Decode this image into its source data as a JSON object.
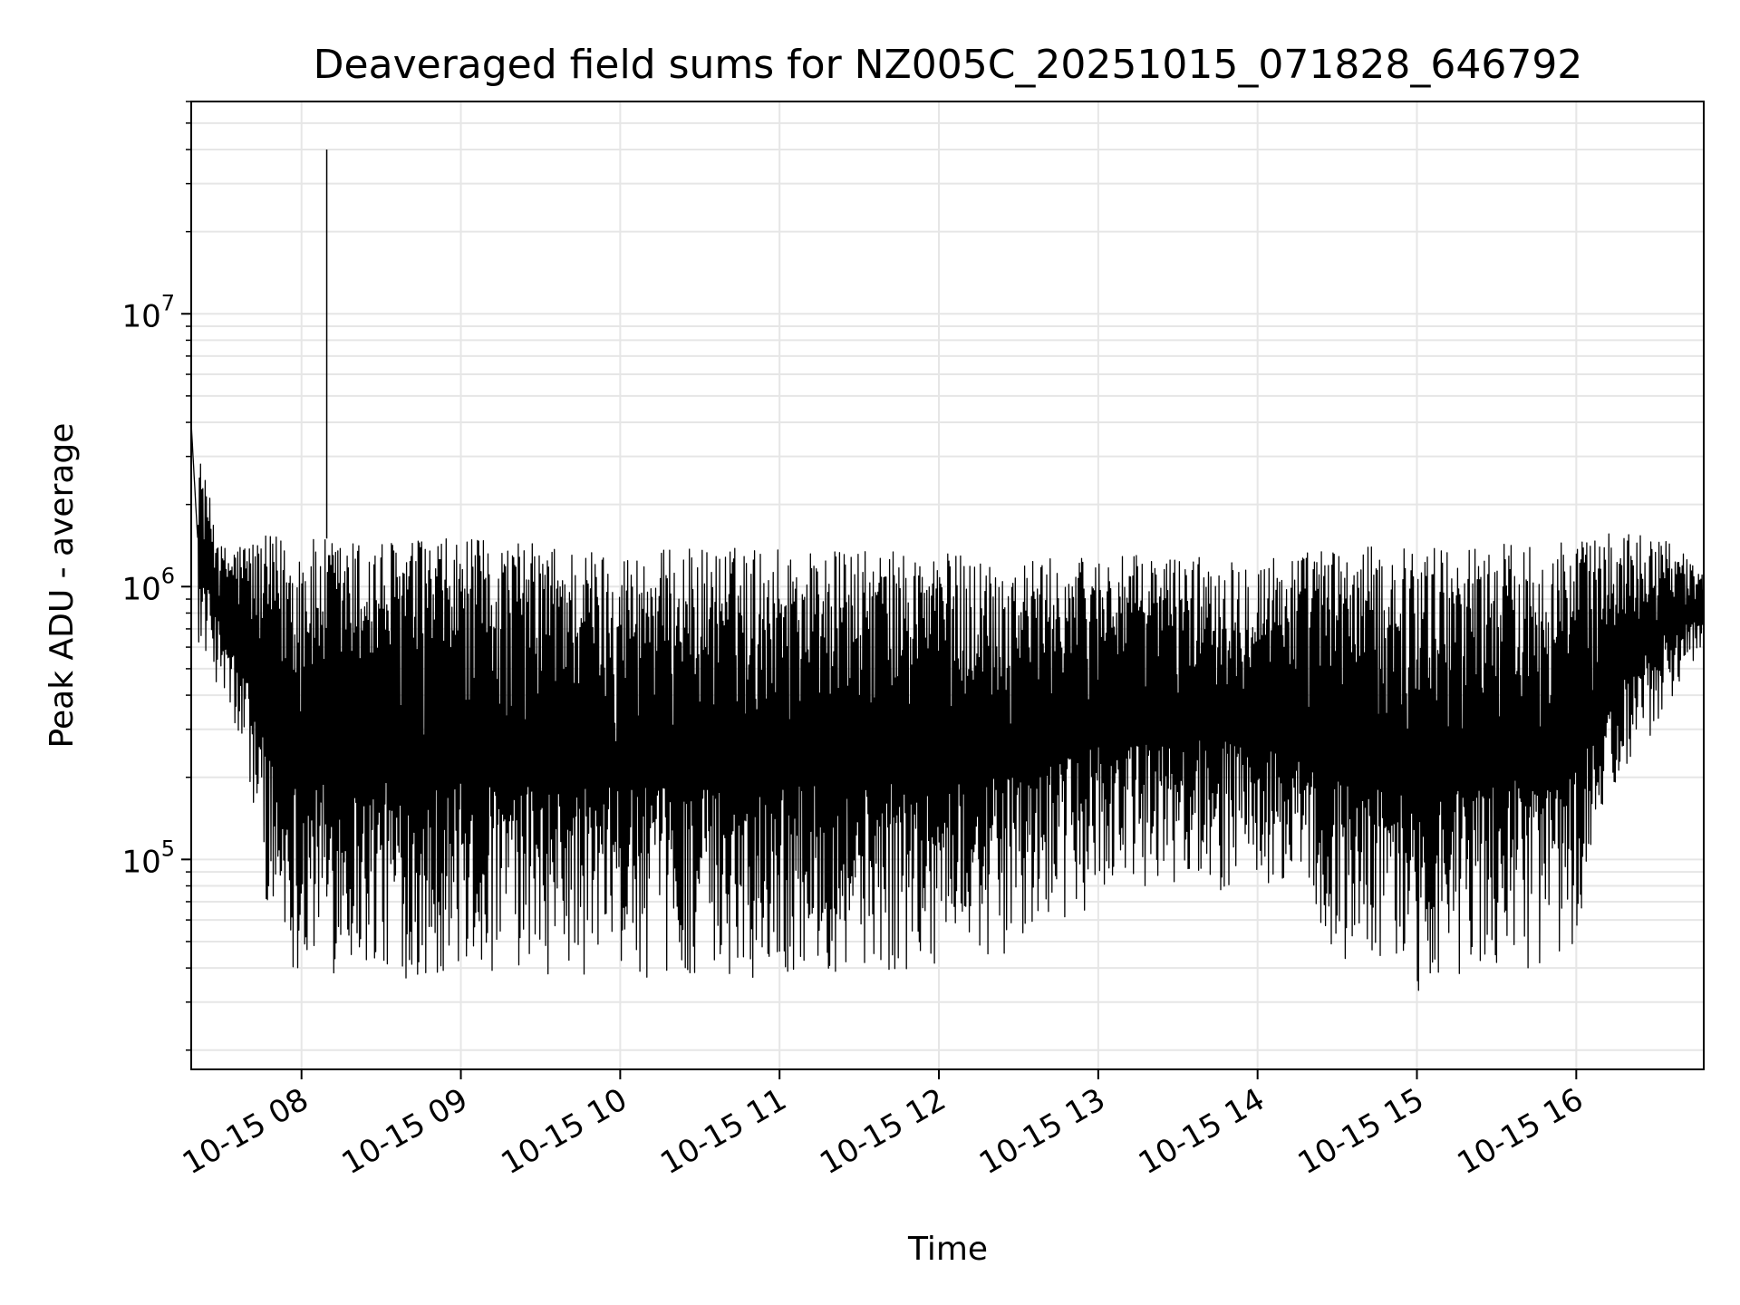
{
  "chart_data": {
    "type": "line",
    "title": "Deaveraged field sums for NZ005C_20251015_071828_646792",
    "xlabel": "Time",
    "ylabel": "Peak ADU - average",
    "x_axis": {
      "kind": "datetime",
      "range": [
        "2025-10-15T07:18:28",
        "2025-10-15T16:48:00"
      ],
      "ticks": [
        {
          "value": "2025-10-15T08:00:00",
          "label": "10-15 08"
        },
        {
          "value": "2025-10-15T09:00:00",
          "label": "10-15 09"
        },
        {
          "value": "2025-10-15T10:00:00",
          "label": "10-15 10"
        },
        {
          "value": "2025-10-15T11:00:00",
          "label": "10-15 11"
        },
        {
          "value": "2025-10-15T12:00:00",
          "label": "10-15 12"
        },
        {
          "value": "2025-10-15T13:00:00",
          "label": "10-15 13"
        },
        {
          "value": "2025-10-15T14:00:00",
          "label": "10-15 14"
        },
        {
          "value": "2025-10-15T15:00:00",
          "label": "10-15 15"
        },
        {
          "value": "2025-10-15T16:00:00",
          "label": "10-15 16"
        }
      ]
    },
    "y_axis": {
      "scale": "log",
      "range": [
        17000,
        60000000
      ],
      "ticks": [
        {
          "value": 100000,
          "base": "10",
          "exp": "5"
        },
        {
          "value": 1000000,
          "base": "10",
          "exp": "6"
        },
        {
          "value": 10000000,
          "base": "10",
          "exp": "7"
        }
      ]
    },
    "grid": true,
    "line_color": "#000000",
    "series": [
      {
        "envelope": {
          "x": [
            "2025-10-15T07:18:28",
            "2025-10-15T07:30:00",
            "2025-10-15T07:40:00",
            "2025-10-15T07:50:00",
            "2025-10-15T08:00:00",
            "2025-10-15T08:30:00",
            "2025-10-15T09:00:00",
            "2025-10-15T09:30:00",
            "2025-10-15T10:00:00",
            "2025-10-15T10:30:00",
            "2025-10-15T11:00:00",
            "2025-10-15T11:30:00",
            "2025-10-15T12:00:00",
            "2025-10-15T12:30:00",
            "2025-10-15T13:00:00",
            "2025-10-15T13:30:00",
            "2025-10-15T14:00:00",
            "2025-10-15T14:30:00",
            "2025-10-15T15:00:00",
            "2025-10-15T15:30:00",
            "2025-10-15T16:00:00",
            "2025-10-15T16:20:00",
            "2025-10-15T16:35:00",
            "2025-10-15T16:48:00"
          ],
          "upper": [
            4000000,
            1400000,
            1500000,
            1550000,
            1500000,
            1500000,
            1500000,
            1450000,
            1350000,
            1400000,
            1400000,
            1350000,
            1350000,
            1250000,
            1300000,
            1300000,
            1300000,
            1400000,
            1400000,
            1450000,
            1500000,
            1600000,
            1500000,
            1100000
          ],
          "lower": [
            700000,
            400000,
            180000,
            45000,
            38000,
            36000,
            36000,
            35000,
            36000,
            36000,
            37000,
            37000,
            40000,
            45000,
            70000,
            80000,
            75000,
            42000,
            32000,
            36000,
            45000,
            200000,
            380000,
            600000
          ]
        },
        "spikes": [
          {
            "x": "2025-10-15T08:09:30",
            "y": 40000000
          }
        ]
      }
    ]
  }
}
